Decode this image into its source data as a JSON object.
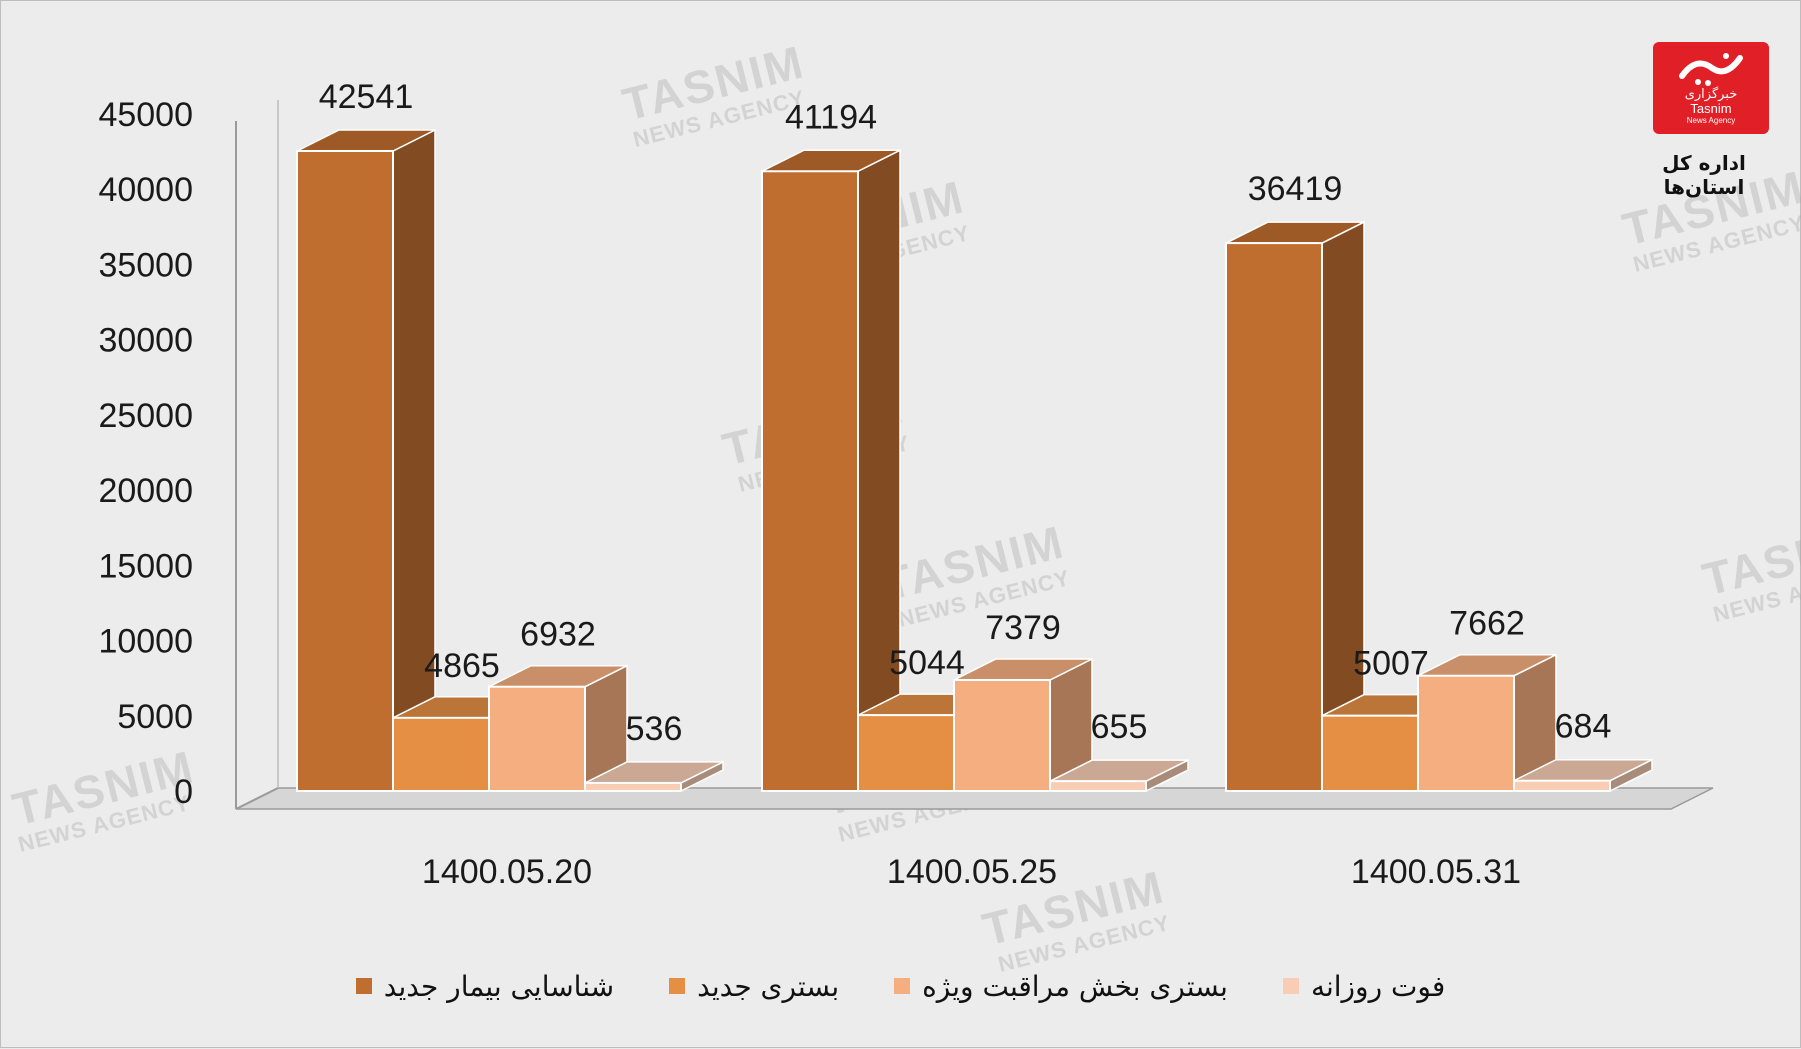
{
  "chart_data": {
    "type": "bar",
    "style": "3d-clustered-column",
    "categories": [
      "1400.05.20",
      "1400.05.25",
      "1400.05.31"
    ],
    "series": [
      {
        "name": "شناسایی بیمار جدید",
        "values": [
          42541,
          41194,
          36419
        ],
        "color": "#bf6e30"
      },
      {
        "name": "بستری جدید",
        "values": [
          4865,
          5044,
          5007
        ],
        "color": "#e48f44"
      },
      {
        "name": "بستری بخش مراقبت ویژه",
        "values": [
          6932,
          7379,
          7662
        ],
        "color": "#f4ae80"
      },
      {
        "name": "فوت روزانه",
        "values": [
          536,
          655,
          684
        ],
        "color": "#f8cdb4"
      }
    ],
    "yticks": [
      0,
      5000,
      10000,
      15000,
      20000,
      25000,
      30000,
      35000,
      40000,
      45000
    ],
    "ylim": [
      0,
      45000
    ],
    "grid": false,
    "legend_position": "bottom"
  },
  "publisher": {
    "logo_text_fa": "خبرگزاری",
    "logo_text_en": "Tasnim",
    "logo_subtext": "News Agency",
    "caption": "اداره کل استان‌ها"
  },
  "watermark": {
    "text_en": "TASNIM",
    "subtext_en": "NEWS AGENCY"
  },
  "icons": {
    "logo": "tasnim-logo-icon"
  }
}
